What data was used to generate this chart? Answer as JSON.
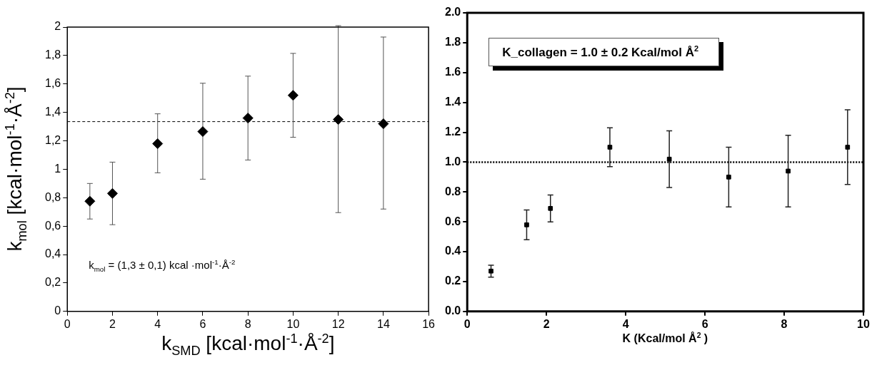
{
  "chart_data": [
    {
      "type": "scatter",
      "xlabel": "k$_{SMD}$ [kcal·mol$^{-1}$·Å$^{-2}$]",
      "ylabel": "k$_{mol}$ [kcal·mol$^{-1}$·Å$^{-2}$]",
      "x": [
        1,
        2,
        4,
        6,
        8,
        10,
        12,
        14
      ],
      "series": [
        {
          "color": "#000000",
          "values": [
            0.775,
            0.83,
            1.18,
            1.265,
            1.36,
            1.52,
            1.35,
            1.32
          ],
          "errors": [
            [
              0.65,
              0.9
            ],
            [
              0.61,
              1.05
            ],
            [
              0.975,
              1.39
            ],
            [
              0.93,
              1.605
            ],
            [
              1.065,
              1.655
            ],
            [
              1.225,
              1.815
            ],
            [
              0.695,
              2.01
            ],
            [
              0.72,
              1.93
            ]
          ]
        }
      ],
      "xlim": [
        0,
        16
      ],
      "xticks": [
        0,
        2,
        4,
        6,
        8,
        10,
        12,
        14,
        16
      ],
      "ylim": [
        0,
        2
      ],
      "yticks": [
        0,
        {
          "value": 0.2,
          "label": "0,2"
        },
        {
          "value": 0.4,
          "label": "0,4"
        },
        {
          "value": 0.6,
          "label": "0,6"
        },
        {
          "value": 0.8,
          "label": "0,8"
        },
        1,
        {
          "value": 1.2,
          "label": "1,2"
        },
        {
          "value": 1.4,
          "label": "1,4"
        },
        {
          "value": 1.6,
          "label": "1,6"
        },
        {
          "value": 1.8,
          "label": "1,8"
        },
        2
      ],
      "ref_lines": [
        {
          "axis": "y",
          "value": 1.335,
          "line_style": "dashed"
        }
      ],
      "annotations": [
        "k$_{mol}$ = (1,3 ± 0,1) kcal ·mol$^{-1}$·Å$^{-2}$"
      ],
      "marker": "diamond",
      "grid": false,
      "legend": false
    },
    {
      "type": "scatter",
      "xlabel": "K (Kcal/mol Å$^{2}$ )",
      "x": [
        0.6,
        1.5,
        2.1,
        3.6,
        5.1,
        6.6,
        8.1,
        9.6
      ],
      "series": [
        {
          "color": "#000000",
          "values": [
            0.27,
            0.58,
            0.69,
            1.1,
            1.02,
            0.9,
            0.94,
            1.1
          ],
          "errors": [
            [
              0.23,
              0.31
            ],
            [
              0.48,
              0.68
            ],
            [
              0.6,
              0.78
            ],
            [
              0.97,
              1.23
            ],
            [
              0.83,
              1.21
            ],
            [
              0.7,
              1.1
            ],
            [
              0.7,
              1.18
            ],
            [
              0.85,
              1.35
            ]
          ]
        }
      ],
      "xlim": [
        0,
        10
      ],
      "xticks": [
        0,
        2,
        4,
        6,
        8,
        10
      ],
      "ylim": [
        0,
        2
      ],
      "yticks": [
        {
          "value": 0,
          "label": "0.0"
        },
        {
          "value": 0.2,
          "label": "0.2"
        },
        {
          "value": 0.4,
          "label": "0.4"
        },
        {
          "value": 0.6,
          "label": "0.6"
        },
        {
          "value": 0.8,
          "label": "0.8"
        },
        {
          "value": 1,
          "label": "1.0"
        },
        {
          "value": 1.2,
          "label": "1.2"
        },
        {
          "value": 1.4,
          "label": "1.4"
        },
        {
          "value": 1.6,
          "label": "1.6"
        },
        {
          "value": 1.8,
          "label": "1.8"
        },
        {
          "value": 2,
          "label": "2.0"
        }
      ],
      "ref_lines": [
        {
          "axis": "y",
          "value": 1.0,
          "line_style": "dotted"
        }
      ],
      "annotations": [
        "K_collagen = 1.0 ± 0.2   Kcal/mol Å$^{2}$"
      ],
      "marker": "square",
      "grid": false,
      "legend": false
    }
  ]
}
